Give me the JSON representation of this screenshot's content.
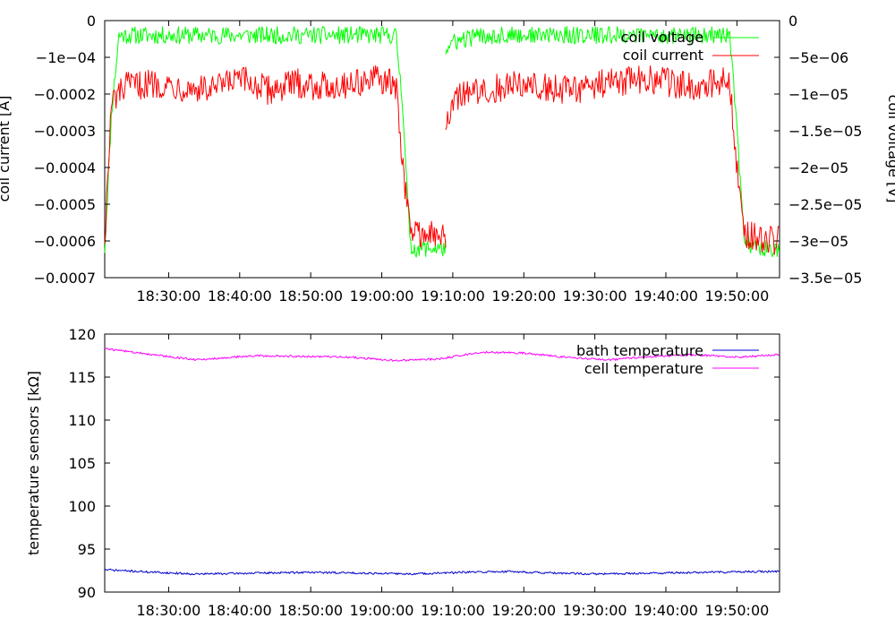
{
  "chart_data": [
    {
      "type": "line",
      "xlabel": "",
      "ylabel": "coil current [A]",
      "y2label": "coil voltage [V]",
      "ylim": [
        -0.0007,
        0
      ],
      "y2lim": [
        -3.5e-05,
        0
      ],
      "xlim": [
        "18:21:00",
        "19:56:00"
      ],
      "x_ticks": [
        "18:30:00",
        "18:40:00",
        "18:50:00",
        "19:00:00",
        "19:10:00",
        "19:20:00",
        "19:30:00",
        "19:40:00",
        "19:50:00"
      ],
      "y_ticks": [
        "0",
        "−1e−04",
        "−0.0002",
        "−0.0003",
        "−0.0004",
        "−0.0005",
        "−0.0006",
        "−0.0007"
      ],
      "y2_ticks": [
        "0",
        "−5e−06",
        "−1e−05",
        "−1.5e−05",
        "−2e−05",
        "−2.5e−05",
        "−3e−05",
        "−3.5e−05"
      ],
      "legend": "top-right",
      "series": [
        {
          "name": "coil voltage",
          "color": "#00ff00",
          "axis": "right",
          "x": [
            "18:21:00",
            "18:22:00",
            "18:23:00",
            "18:26:00",
            "18:30:00",
            "18:34:00",
            "18:38:00",
            "18:42:00",
            "18:46:00",
            "18:50:00",
            "18:54:00",
            "18:58:00",
            "19:02:00",
            "19:03:00",
            "19:04:00",
            "19:06:00",
            "19:08:00",
            "19:09:00"
          ],
          "values": [
            -3.1e-05,
            -1.2e-05,
            -2e-06,
            -2e-06,
            -2e-06,
            -2e-06,
            -2e-06,
            -2e-06,
            -2e-06,
            -2e-06,
            -2e-06,
            -2e-06,
            -2e-06,
            -1.2e-05,
            -3.1e-05,
            -3.1e-05,
            -3.1e-05,
            -3.1e-05
          ],
          "segment2_x": [
            "19:09:00",
            "19:10:00",
            "19:14:00",
            "19:20:00",
            "19:26:00",
            "19:32:00",
            "19:38:00",
            "19:44:00",
            "19:49:00",
            "19:50:00",
            "19:51:00",
            "19:53:00",
            "19:56:00"
          ],
          "segment2_values": [
            -4e-06,
            -3e-06,
            -2e-06,
            -2e-06,
            -2e-06,
            -2e-06,
            -2e-06,
            -2e-06,
            -2e-06,
            -1.5e-05,
            -3e-05,
            -3.1e-05,
            -3.1e-05
          ]
        },
        {
          "name": "coil current",
          "color": "#ff0000",
          "axis": "left",
          "x": [
            "18:21:00",
            "18:22:00",
            "18:24:00",
            "18:28:00",
            "18:32:00",
            "18:36:00",
            "18:40:00",
            "18:44:00",
            "18:48:00",
            "18:52:00",
            "18:56:00",
            "19:00:00",
            "19:02:00",
            "19:03:00",
            "19:04:00",
            "19:06:00",
            "19:08:00",
            "19:09:00"
          ],
          "values": [
            -0.00059,
            -0.00022,
            -0.00018,
            -0.00017,
            -0.00018,
            -0.00019,
            -0.00016,
            -0.00019,
            -0.00017,
            -0.00018,
            -0.00017,
            -0.00016,
            -0.00018,
            -0.0004,
            -0.00057,
            -0.00058,
            -0.00059,
            -0.00059
          ],
          "segment2_x": [
            "19:09:00",
            "19:10:00",
            "19:14:00",
            "19:20:00",
            "19:26:00",
            "19:32:00",
            "19:38:00",
            "19:44:00",
            "19:49:00",
            "19:50:00",
            "19:51:00",
            "19:53:00",
            "19:56:00"
          ],
          "segment2_values": [
            -0.00028,
            -0.00021,
            -0.00019,
            -0.00017,
            -0.00019,
            -0.00017,
            -0.00016,
            -0.00018,
            -0.00016,
            -0.0004,
            -0.00058,
            -0.00059,
            -0.0006
          ]
        }
      ]
    },
    {
      "type": "line",
      "xlabel": "",
      "ylabel": "temperature sensors [kΩ]",
      "ylim": [
        90,
        120
      ],
      "xlim": [
        "18:21:00",
        "19:56:00"
      ],
      "x_ticks": [
        "18:30:00",
        "18:40:00",
        "18:50:00",
        "19:00:00",
        "19:10:00",
        "19:20:00",
        "19:30:00",
        "19:40:00",
        "19:50:00"
      ],
      "y_ticks": [
        "120",
        "115",
        "110",
        "105",
        "100",
        "95",
        "90"
      ],
      "legend": "top-right",
      "series": [
        {
          "name": "bath temperature",
          "color": "#0000cc",
          "x": [
            "18:21:00",
            "18:28:00",
            "18:34:00",
            "18:42:00",
            "18:50:00",
            "18:58:00",
            "19:04:00",
            "19:12:00",
            "19:18:00",
            "19:24:00",
            "19:30:00",
            "19:38:00",
            "19:46:00",
            "19:56:00"
          ],
          "values": [
            92.6,
            92.3,
            92.1,
            92.2,
            92.3,
            92.2,
            92.1,
            92.3,
            92.4,
            92.2,
            92.1,
            92.2,
            92.3,
            92.4
          ]
        },
        {
          "name": "cell temperature",
          "color": "#ff00ff",
          "x": [
            "18:21:00",
            "18:26:00",
            "18:34:00",
            "18:42:00",
            "18:50:00",
            "18:56:00",
            "19:02:00",
            "19:08:00",
            "19:14:00",
            "19:20:00",
            "19:26:00",
            "19:32:00",
            "19:38:00",
            "19:44:00",
            "19:50:00",
            "19:56:00"
          ],
          "values": [
            118.3,
            117.8,
            117.0,
            117.5,
            117.4,
            117.3,
            116.9,
            117.1,
            117.9,
            117.8,
            117.3,
            117.0,
            117.4,
            117.6,
            117.3,
            117.6
          ]
        }
      ]
    }
  ]
}
